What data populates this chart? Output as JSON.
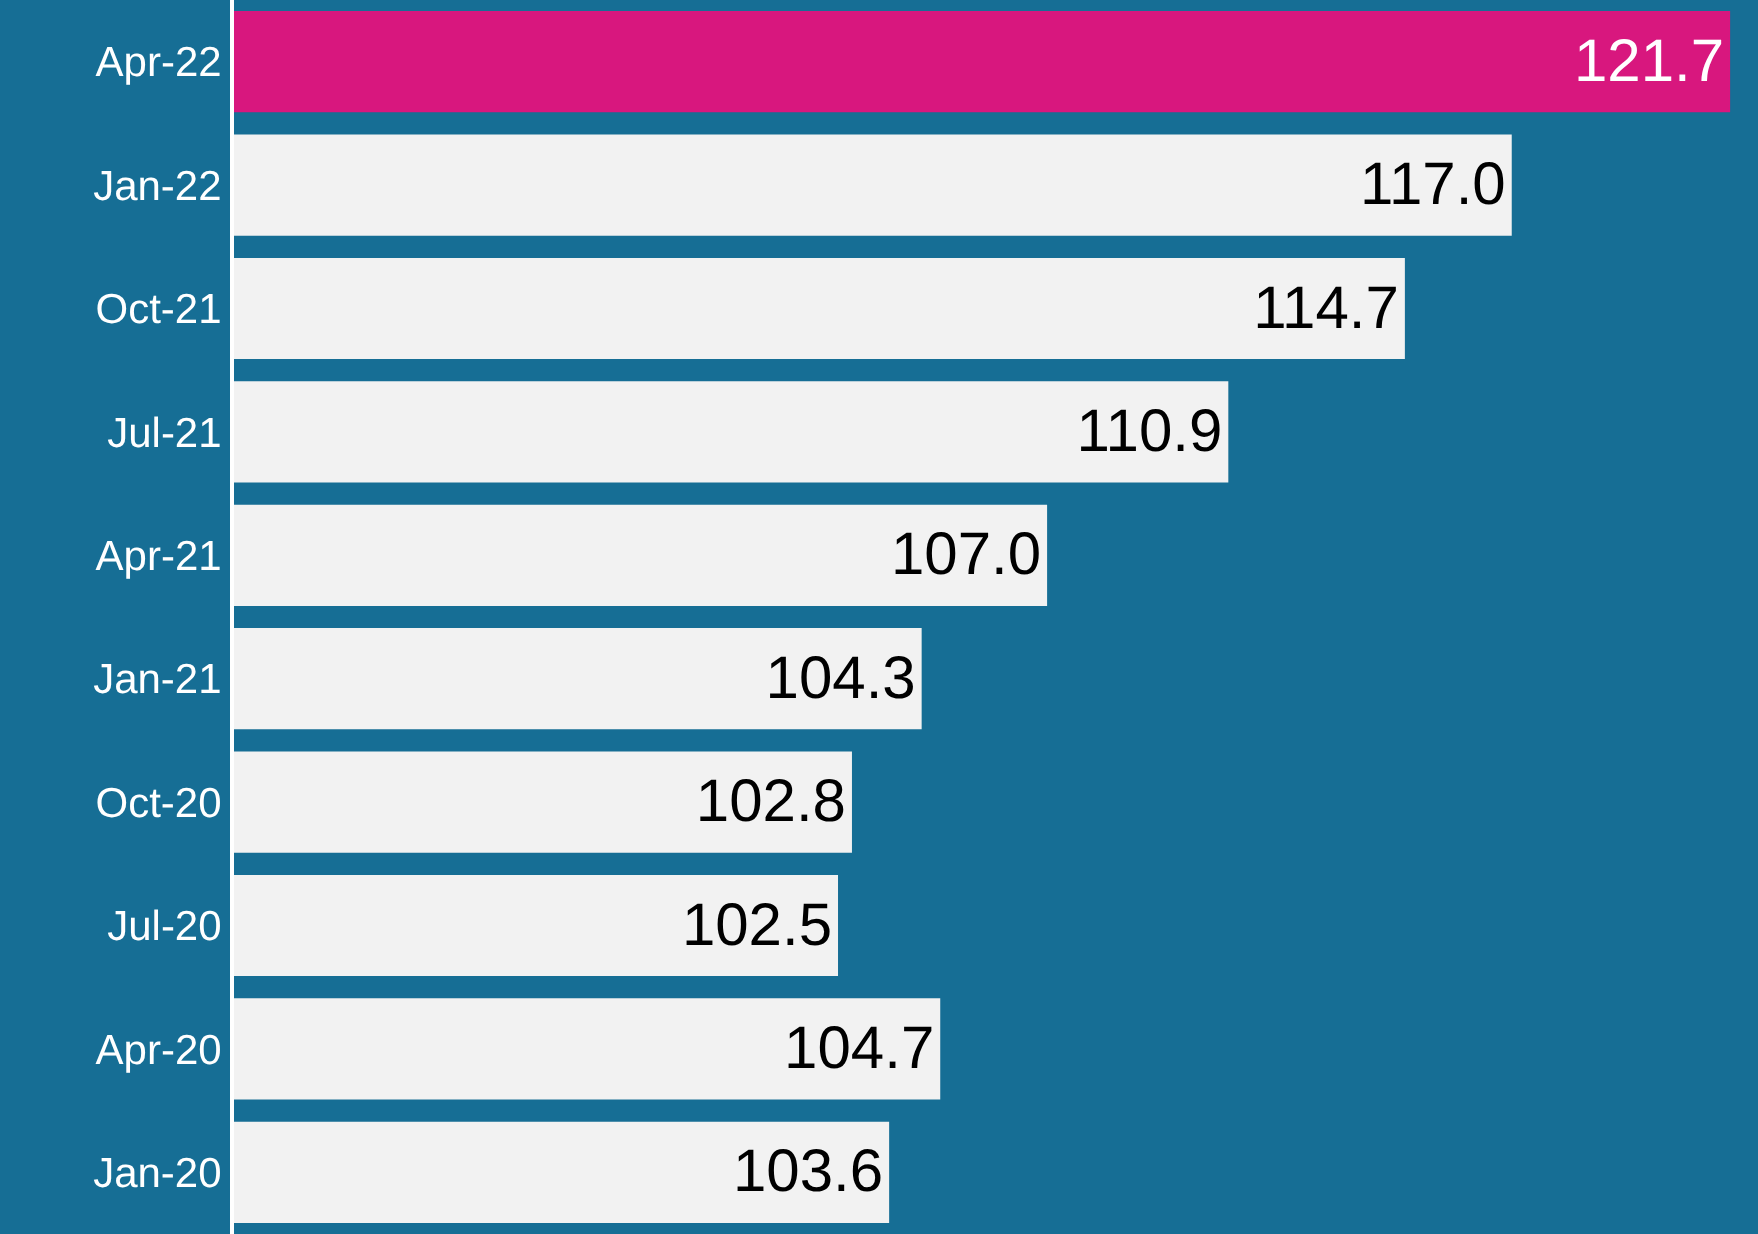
{
  "chart_data": {
    "type": "bar",
    "orientation": "horizontal",
    "categories": [
      "Apr-22",
      "Jan-22",
      "Oct-21",
      "Jul-21",
      "Apr-21",
      "Jan-21",
      "Oct-20",
      "Jul-20",
      "Apr-20",
      "Jan-20"
    ],
    "values": [
      121.7,
      117.0,
      114.7,
      110.9,
      107.0,
      104.3,
      102.8,
      102.5,
      104.7,
      103.6
    ],
    "colors": [
      "#d8177e",
      "#f2f2f2",
      "#f2f2f2",
      "#f2f2f2",
      "#f2f2f2",
      "#f2f2f2",
      "#f2f2f2",
      "#f2f2f2",
      "#f2f2f2",
      "#f2f2f2"
    ],
    "value_labels": [
      "121.7",
      "117.0",
      "114.7",
      "110.9",
      "107.0",
      "104.3",
      "102.8",
      "102.5",
      "104.7",
      "103.6"
    ],
    "xlim": [
      89.5,
      122.3
    ],
    "tick_labels": "y",
    "grid": false,
    "legend": false
  }
}
